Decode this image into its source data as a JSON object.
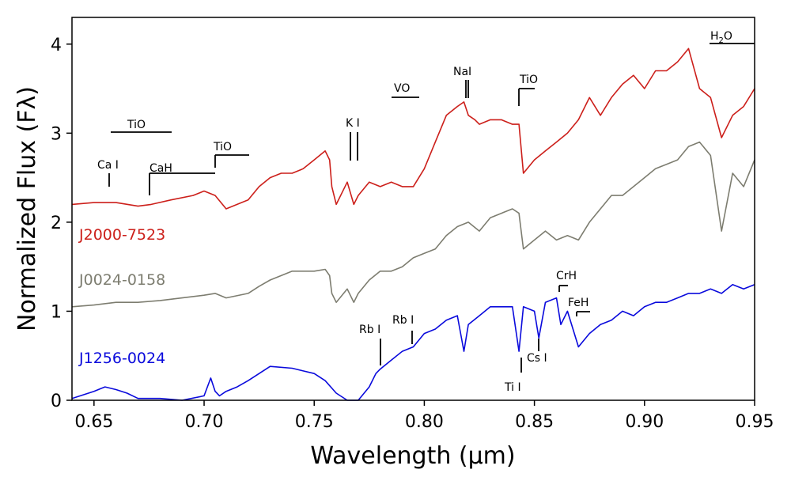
{
  "chart_data": {
    "type": "line",
    "xlabel": "Wavelength (μm)",
    "ylabel": "Normalized Flux (Fλ)",
    "xlim": [
      0.64,
      0.95
    ],
    "ylim": [
      0,
      4.3
    ],
    "x_ticks": [
      0.65,
      0.7,
      0.75,
      0.8,
      0.85,
      0.9,
      0.95
    ],
    "x_tick_labels": [
      "0.65",
      "0.70",
      "0.75",
      "0.80",
      "0.85",
      "0.90",
      "0.95"
    ],
    "y_ticks": [
      0,
      1,
      2,
      3,
      4
    ],
    "y_tick_labels": [
      "0",
      "1",
      "2",
      "3",
      "4"
    ],
    "grid": false,
    "series": [
      {
        "name": "J2000-7523",
        "color": "#cc1f1a",
        "x": [
          0.64,
          0.65,
          0.66,
          0.67,
          0.676,
          0.685,
          0.695,
          0.7,
          0.705,
          0.71,
          0.72,
          0.725,
          0.73,
          0.735,
          0.74,
          0.745,
          0.75,
          0.755,
          0.757,
          0.758,
          0.76,
          0.765,
          0.768,
          0.77,
          0.775,
          0.78,
          0.785,
          0.79,
          0.795,
          0.8,
          0.805,
          0.81,
          0.815,
          0.818,
          0.82,
          0.823,
          0.825,
          0.83,
          0.835,
          0.84,
          0.843,
          0.845,
          0.85,
          0.855,
          0.86,
          0.865,
          0.87,
          0.875,
          0.88,
          0.885,
          0.89,
          0.895,
          0.9,
          0.905,
          0.91,
          0.915,
          0.92,
          0.925,
          0.93,
          0.935,
          0.94,
          0.945,
          0.95
        ],
        "y": [
          2.2,
          2.22,
          2.22,
          2.18,
          2.2,
          2.25,
          2.3,
          2.35,
          2.3,
          2.15,
          2.25,
          2.4,
          2.5,
          2.55,
          2.55,
          2.6,
          2.7,
          2.8,
          2.7,
          2.4,
          2.2,
          2.45,
          2.2,
          2.3,
          2.45,
          2.4,
          2.45,
          2.4,
          2.4,
          2.6,
          2.9,
          3.2,
          3.3,
          3.35,
          3.2,
          3.15,
          3.1,
          3.15,
          3.15,
          3.1,
          3.1,
          2.55,
          2.7,
          2.8,
          2.9,
          3.0,
          3.15,
          3.4,
          3.2,
          3.4,
          3.55,
          3.65,
          3.5,
          3.7,
          3.7,
          3.8,
          3.95,
          3.5,
          3.4,
          2.95,
          3.2,
          3.3,
          3.5
        ]
      },
      {
        "name": "J0024-0158",
        "color": "#7d7d70",
        "x": [
          0.64,
          0.65,
          0.66,
          0.67,
          0.68,
          0.69,
          0.7,
          0.705,
          0.71,
          0.72,
          0.725,
          0.73,
          0.735,
          0.74,
          0.745,
          0.75,
          0.755,
          0.757,
          0.758,
          0.76,
          0.765,
          0.768,
          0.77,
          0.775,
          0.78,
          0.785,
          0.79,
          0.795,
          0.8,
          0.805,
          0.81,
          0.815,
          0.82,
          0.825,
          0.83,
          0.835,
          0.84,
          0.843,
          0.845,
          0.85,
          0.855,
          0.86,
          0.865,
          0.87,
          0.875,
          0.88,
          0.885,
          0.89,
          0.895,
          0.9,
          0.905,
          0.91,
          0.915,
          0.92,
          0.925,
          0.93,
          0.935,
          0.94,
          0.945,
          0.95
        ],
        "y": [
          1.05,
          1.07,
          1.1,
          1.1,
          1.12,
          1.15,
          1.18,
          1.2,
          1.15,
          1.2,
          1.28,
          1.35,
          1.4,
          1.45,
          1.45,
          1.45,
          1.47,
          1.4,
          1.2,
          1.1,
          1.25,
          1.1,
          1.2,
          1.35,
          1.45,
          1.45,
          1.5,
          1.6,
          1.65,
          1.7,
          1.85,
          1.95,
          2.0,
          1.9,
          2.05,
          2.1,
          2.15,
          2.1,
          1.7,
          1.8,
          1.9,
          1.8,
          1.85,
          1.8,
          2.0,
          2.15,
          2.3,
          2.3,
          2.4,
          2.5,
          2.6,
          2.65,
          2.7,
          2.85,
          2.9,
          2.75,
          1.9,
          2.55,
          2.4,
          2.7
        ]
      },
      {
        "name": "J1256-0024",
        "color": "#0a0adc",
        "x": [
          0.64,
          0.65,
          0.655,
          0.66,
          0.665,
          0.67,
          0.68,
          0.69,
          0.7,
          0.703,
          0.705,
          0.707,
          0.71,
          0.715,
          0.72,
          0.725,
          0.73,
          0.74,
          0.745,
          0.75,
          0.755,
          0.76,
          0.765,
          0.77,
          0.775,
          0.778,
          0.78,
          0.785,
          0.79,
          0.795,
          0.8,
          0.805,
          0.81,
          0.815,
          0.818,
          0.82,
          0.825,
          0.83,
          0.835,
          0.84,
          0.843,
          0.845,
          0.85,
          0.852,
          0.855,
          0.86,
          0.862,
          0.865,
          0.87,
          0.875,
          0.88,
          0.885,
          0.89,
          0.895,
          0.9,
          0.905,
          0.91,
          0.915,
          0.92,
          0.925,
          0.93,
          0.935,
          0.94,
          0.945,
          0.95
        ],
        "y": [
          0.02,
          0.1,
          0.15,
          0.12,
          0.08,
          0.02,
          0.02,
          0.0,
          0.05,
          0.25,
          0.1,
          0.05,
          0.1,
          0.15,
          0.22,
          0.3,
          0.38,
          0.36,
          0.33,
          0.3,
          0.22,
          0.08,
          0.0,
          0.0,
          0.15,
          0.3,
          0.35,
          0.45,
          0.55,
          0.6,
          0.75,
          0.8,
          0.9,
          0.95,
          0.55,
          0.85,
          0.95,
          1.05,
          1.05,
          1.05,
          0.55,
          1.05,
          1.0,
          0.7,
          1.1,
          1.15,
          0.85,
          1.0,
          0.6,
          0.75,
          0.85,
          0.9,
          1.0,
          0.95,
          1.05,
          1.1,
          1.1,
          1.15,
          1.2,
          1.2,
          1.25,
          1.2,
          1.3,
          1.25,
          1.3
        ]
      }
    ],
    "series_labels": [
      "J2000-7523",
      "J0024-0158",
      "J1256-0024"
    ],
    "annotations": {
      "ca": "Ca I",
      "tio1": "TiO",
      "cah": "CaH",
      "tio2": "TiO",
      "k": "K I",
      "vo": "VO",
      "na": "NaI",
      "tio3": "TiO",
      "h2o_main": "H",
      "h2o_sub": "2",
      "h2o_end": "O",
      "rb1": "Rb I",
      "rb2": "Rb I",
      "ti": "Ti I",
      "cs": "Cs I",
      "crh": "CrH",
      "feh": "FeH"
    }
  }
}
